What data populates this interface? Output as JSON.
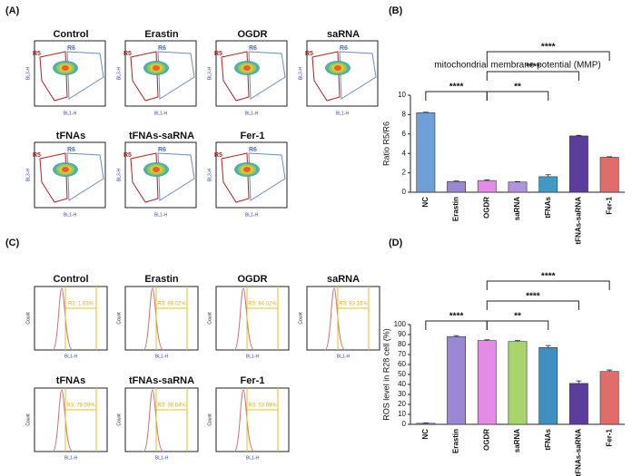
{
  "panel_labels": [
    "(A)",
    "(B)",
    "(C)",
    "(D)"
  ],
  "flow_panels": {
    "titles": [
      "Control",
      "Erastin",
      "OGDR",
      "saRNA",
      "tFNAs",
      "tFNAs-saRNA",
      "Fer-1"
    ],
    "gates": [
      "R5",
      "R6"
    ],
    "x_label": "BL1-H",
    "y_label": "BL3-H"
  },
  "histogram_panels": {
    "titles": [
      "Control",
      "Erastin",
      "OGDR",
      "saRNA",
      "tFNAs",
      "tFNAs-saRNA",
      "Fer-1"
    ],
    "gate_labels": [
      "R3: 1.53%",
      "R3: 89.02%",
      "R3: 84.02%",
      "R3: 83.16%",
      "R3: 78.59%",
      "R3: 38.64%",
      "R3: 53.69%"
    ],
    "x_label": "BL1-H",
    "y_label": "Count"
  },
  "chart_data": [
    {
      "type": "bar",
      "title": "mitochondrial membrane potential (MMP)",
      "y_label": "Ratio R5/R6",
      "categories": [
        "NC",
        "Erastin",
        "OGDR",
        "saRNA",
        "tFNAs",
        "tFNAs-saRNA",
        "Fer-1"
      ],
      "values": [
        8.2,
        1.1,
        1.2,
        1.05,
        1.6,
        5.8,
        3.6
      ],
      "errors": [
        0.05,
        0.05,
        0.08,
        0.04,
        0.2,
        0.06,
        0.06
      ],
      "colors": [
        "#6e9fd9",
        "#9c86d6",
        "#e58ae6",
        "#b293de",
        "#3f9ac4",
        "#5b3d9c",
        "#e06c6c"
      ],
      "ylim": [
        0,
        10
      ],
      "yticks": [
        0,
        2,
        4,
        6,
        8,
        10
      ],
      "comparisons": [
        {
          "between": [
            "NC",
            "OGDR"
          ],
          "label": "****"
        },
        {
          "between": [
            "OGDR",
            "tFNAs"
          ],
          "label": "**"
        },
        {
          "between": [
            "OGDR",
            "tFNAs-saRNA"
          ],
          "label": "****"
        },
        {
          "between": [
            "OGDR",
            "Fer-1"
          ],
          "label": "****"
        }
      ]
    },
    {
      "type": "bar",
      "y_label": "ROS level in R28 cell (%)",
      "categories": [
        "NC",
        "Erastin",
        "OGDR",
        "saRNA",
        "tFNAs",
        "tFNAs-saRNA",
        "Fer-1"
      ],
      "values": [
        1,
        88,
        84,
        83,
        77,
        41,
        53
      ],
      "errors": [
        0.3,
        1,
        0.8,
        1,
        2,
        2.5,
        1.5
      ],
      "colors": [
        "#6e9fd9",
        "#9c86d6",
        "#e58ae6",
        "#a8d46c",
        "#3f8fc0",
        "#5b3d9c",
        "#e06c6c"
      ],
      "ylim": [
        0,
        100
      ],
      "yticks": [
        0,
        10,
        20,
        30,
        40,
        50,
        60,
        70,
        80,
        90,
        100
      ],
      "comparisons": [
        {
          "between": [
            "NC",
            "OGDR"
          ],
          "label": "****"
        },
        {
          "between": [
            "OGDR",
            "tFNAs"
          ],
          "label": "**"
        },
        {
          "between": [
            "OGDR",
            "tFNAs-saRNA"
          ],
          "label": "****"
        },
        {
          "between": [
            "OGDR",
            "Fer-1"
          ],
          "label": "****"
        }
      ]
    }
  ]
}
